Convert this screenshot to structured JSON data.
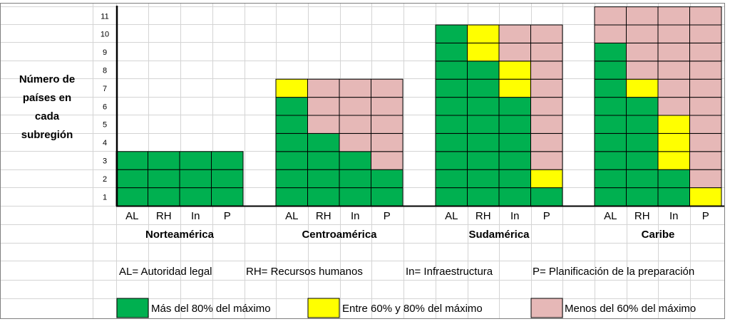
{
  "chart_data": {
    "type": "table",
    "ylabel_lines": [
      "Número de",
      "países en",
      "cada",
      "subregión"
    ],
    "y_ticks": [
      "1",
      "2",
      "3",
      "4",
      "5",
      "6",
      "7",
      "8",
      "9",
      "10",
      "11"
    ],
    "categories": [
      "AL",
      "RH",
      "In",
      "P"
    ],
    "level_colors": {
      "green": "#00b050",
      "yellow": "#ffff00",
      "pink": "#e6b8b7"
    },
    "regions": [
      {
        "name": "Norteamérica",
        "total": 3,
        "columns": [
          {
            "category": "AL",
            "green": 3,
            "yellow": 0,
            "pink": 0
          },
          {
            "category": "RH",
            "green": 3,
            "yellow": 0,
            "pink": 0
          },
          {
            "category": "In",
            "green": 3,
            "yellow": 0,
            "pink": 0
          },
          {
            "category": "P",
            "green": 3,
            "yellow": 0,
            "pink": 0
          }
        ]
      },
      {
        "name": "Centroamérica",
        "total": 7,
        "columns": [
          {
            "category": "AL",
            "green": 6,
            "yellow": 1,
            "pink": 0
          },
          {
            "category": "RH",
            "green": 4,
            "yellow": 0,
            "pink": 3
          },
          {
            "category": "In",
            "green": 3,
            "yellow": 0,
            "pink": 4
          },
          {
            "category": "P",
            "green": 2,
            "yellow": 0,
            "pink": 5
          }
        ]
      },
      {
        "name": "Sudamérica",
        "total": 10,
        "columns": [
          {
            "category": "AL",
            "green": 10,
            "yellow": 0,
            "pink": 0
          },
          {
            "category": "RH",
            "green": 8,
            "yellow": 2,
            "pink": 0
          },
          {
            "category": "In",
            "green": 6,
            "yellow": 2,
            "pink": 2
          },
          {
            "category": "P",
            "green": 1,
            "yellow": 1,
            "pink": 8
          }
        ]
      },
      {
        "name": "Caribe",
        "total": 11,
        "columns": [
          {
            "category": "AL",
            "green": 9,
            "yellow": 0,
            "pink": 2
          },
          {
            "category": "RH",
            "green": 6,
            "yellow": 1,
            "pink": 4
          },
          {
            "category": "In",
            "green": 2,
            "yellow": 3,
            "pink": 6
          },
          {
            "category": "P",
            "green": 0,
            "yellow": 1,
            "pink": 10
          }
        ]
      }
    ],
    "abbreviations": [
      "AL= Autoridad legal",
      "RH= Recursos humanos",
      "In= Infraestructura",
      "P= Planificación de la preparación"
    ],
    "legend": [
      {
        "label": "Más del 80% del máximo",
        "color": "#00b050"
      },
      {
        "label": "Entre 60% y 80% del máximo",
        "color": "#ffff00"
      },
      {
        "label": "Menos del 60% del máximo",
        "color": "#e6b8b7"
      }
    ]
  }
}
